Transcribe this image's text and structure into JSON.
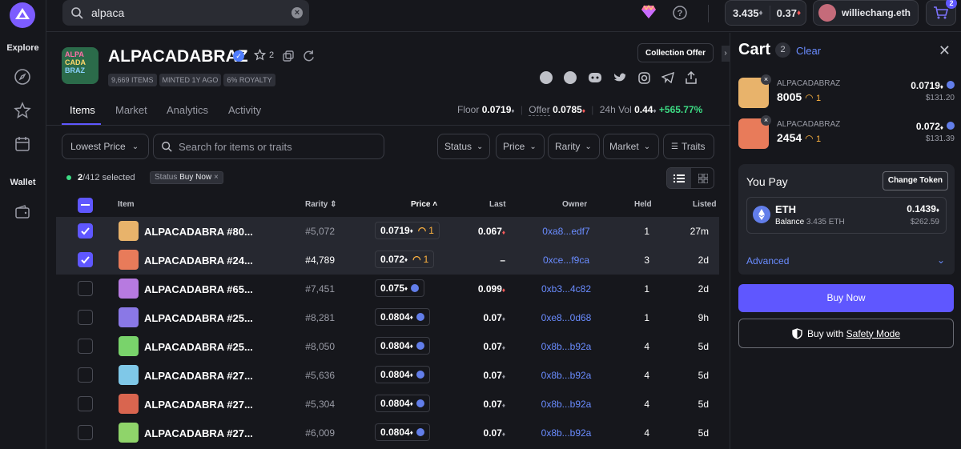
{
  "search": {
    "value": "alpaca"
  },
  "sidebar": {
    "explore": "Explore",
    "wallet": "Wallet"
  },
  "header": {
    "balance_eth": "3.435",
    "balance_weth": "0.37",
    "username": "williechang.eth",
    "cart_count": "2"
  },
  "collection": {
    "name": "ALPACADABRAZ",
    "stars": "2",
    "chips": [
      "9,669 ITEMS",
      "MINTED 1Y AGO",
      "6% ROYALTY"
    ],
    "collection_offer": "Collection Offer",
    "tabs": [
      "Items",
      "Market",
      "Analytics",
      "Activity"
    ],
    "floor_label": "Floor",
    "floor": "0.0719",
    "offer_label": "Offer",
    "offer": "0.0785",
    "vol_label": "24h Vol",
    "vol": "0.44",
    "vol_change": "+565.77%"
  },
  "filters": {
    "sort": "Lowest Price",
    "search_placeholder": "Search for items or traits",
    "status": "Status",
    "price": "Price",
    "rarity": "Rarity",
    "market": "Market",
    "traits": "Traits",
    "selected_count": "2",
    "selected_total": "/412 selected",
    "status_chip_label": "Status",
    "status_chip_value": "Buy Now"
  },
  "table": {
    "headers": {
      "item": "Item",
      "rarity": "Rarity",
      "price": "Price",
      "last": "Last",
      "owner": "Owner",
      "held": "Held",
      "listed": "Listed"
    },
    "rows": [
      {
        "name": "ALPACADABRA #80...",
        "rarity": "#5,072",
        "price": "0.0719",
        "market_badge": "1",
        "last": "0.067",
        "owner": "0xa8...edf7",
        "held": "1",
        "listed": "27m",
        "selected": true,
        "color": "#e8b36b"
      },
      {
        "name": "ALPACADABRA #24...",
        "rarity": "#4,789",
        "price": "0.072",
        "market_badge": "1",
        "last": "–",
        "owner": "0xce...f9ca",
        "held": "3",
        "listed": "2d",
        "selected": true,
        "color": "#e87b5a"
      },
      {
        "name": "ALPACADABRA #65...",
        "rarity": "#7,451",
        "price": "0.075",
        "market_badge": "",
        "last": "0.099",
        "owner": "0xb3...4c82",
        "held": "1",
        "listed": "2d",
        "selected": false,
        "color": "#b77ae0"
      },
      {
        "name": "ALPACADABRA #25...",
        "rarity": "#8,281",
        "price": "0.0804",
        "market_badge": "",
        "last": "0.07",
        "owner": "0xe8...0d68",
        "held": "1",
        "listed": "9h",
        "selected": false,
        "color": "#8a78e6"
      },
      {
        "name": "ALPACADABRA #25...",
        "rarity": "#8,050",
        "price": "0.0804",
        "market_badge": "",
        "last": "0.07",
        "owner": "0x8b...b92a",
        "held": "4",
        "listed": "5d",
        "selected": false,
        "color": "#79d36b"
      },
      {
        "name": "ALPACADABRA #27...",
        "rarity": "#5,636",
        "price": "0.0804",
        "market_badge": "",
        "last": "0.07",
        "owner": "0x8b...b92a",
        "held": "4",
        "listed": "5d",
        "selected": false,
        "color": "#7fc8e8"
      },
      {
        "name": "ALPACADABRA #27...",
        "rarity": "#5,304",
        "price": "0.0804",
        "market_badge": "",
        "last": "0.07",
        "owner": "0x8b...b92a",
        "held": "4",
        "listed": "5d",
        "selected": false,
        "color": "#d9654f"
      },
      {
        "name": "ALPACADABRA #27...",
        "rarity": "#6,009",
        "price": "0.0804",
        "market_badge": "",
        "last": "0.07",
        "owner": "0x8b...b92a",
        "held": "4",
        "listed": "5d",
        "selected": false,
        "color": "#8fd46a"
      }
    ]
  },
  "cart": {
    "title": "Cart",
    "count": "2",
    "clear": "Clear",
    "items": [
      {
        "collection": "ALPACADABRAZ",
        "token": "8005",
        "badge": "1",
        "price": "0.0719",
        "usd": "$131.20",
        "color": "#e8b36b"
      },
      {
        "collection": "ALPACADABRAZ",
        "token": "2454",
        "badge": "1",
        "price": "0.072",
        "usd": "$131.39",
        "color": "#e87b5a"
      }
    ],
    "you_pay": "You Pay",
    "change_token": "Change Token",
    "token": "ETH",
    "balance_label": "Balance",
    "balance": "3.435 ETH",
    "total": "0.1439",
    "total_usd": "$262.59",
    "advanced": "Advanced",
    "buy_now": "Buy Now",
    "buy_safety_prefix": "Buy with",
    "buy_safety_mode": "Safety Mode"
  },
  "colors": {
    "accent": "#5f57ff",
    "link": "#6a8cff",
    "positive": "#3ddc84",
    "negative": "#ff5c5c"
  }
}
